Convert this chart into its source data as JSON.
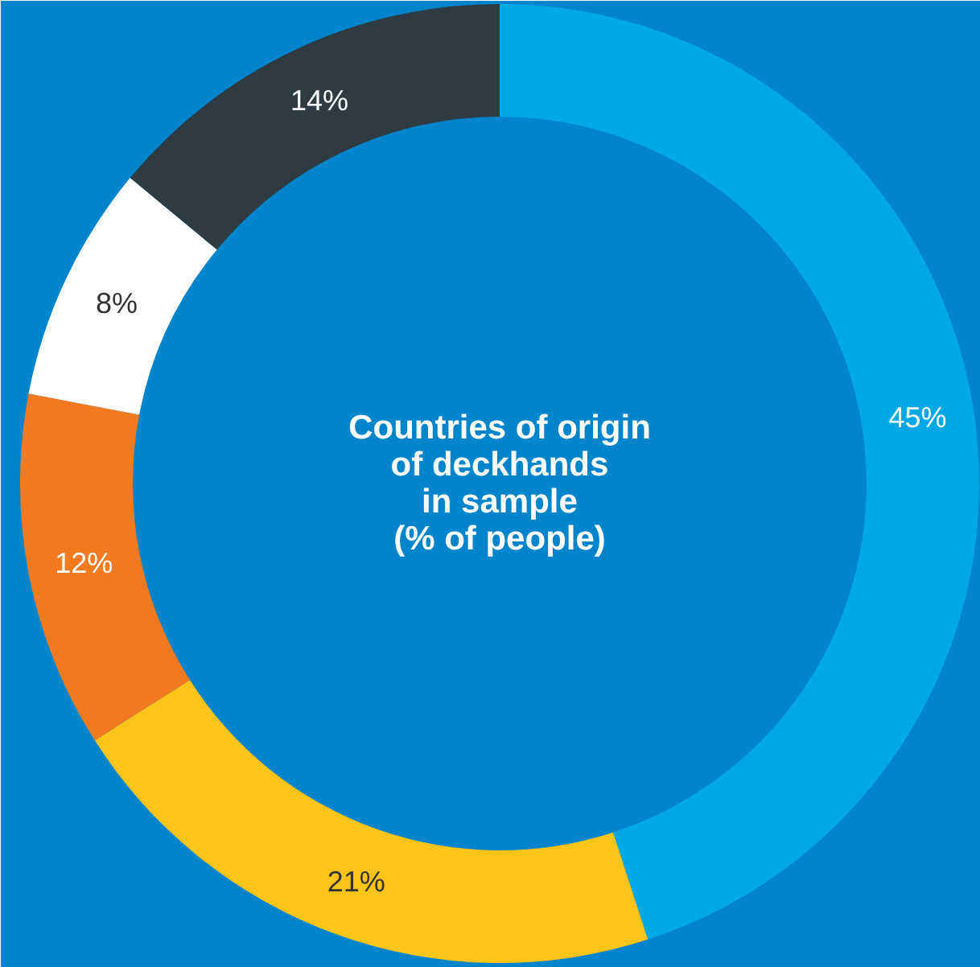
{
  "chart_data": {
    "type": "donut",
    "title": "Countries of origin\nof deckhands\nin sample\n(% of people)",
    "categories": [
      null,
      null,
      null,
      null,
      null
    ],
    "values": [
      45,
      21,
      12,
      8,
      14
    ],
    "colors": [
      "#00a9e6",
      "#fec418",
      "#f47a20",
      "#ffffff",
      "#2e3b42"
    ],
    "value_labels": [
      "45%",
      "21%",
      "12%",
      "8%",
      "14%"
    ]
  }
}
